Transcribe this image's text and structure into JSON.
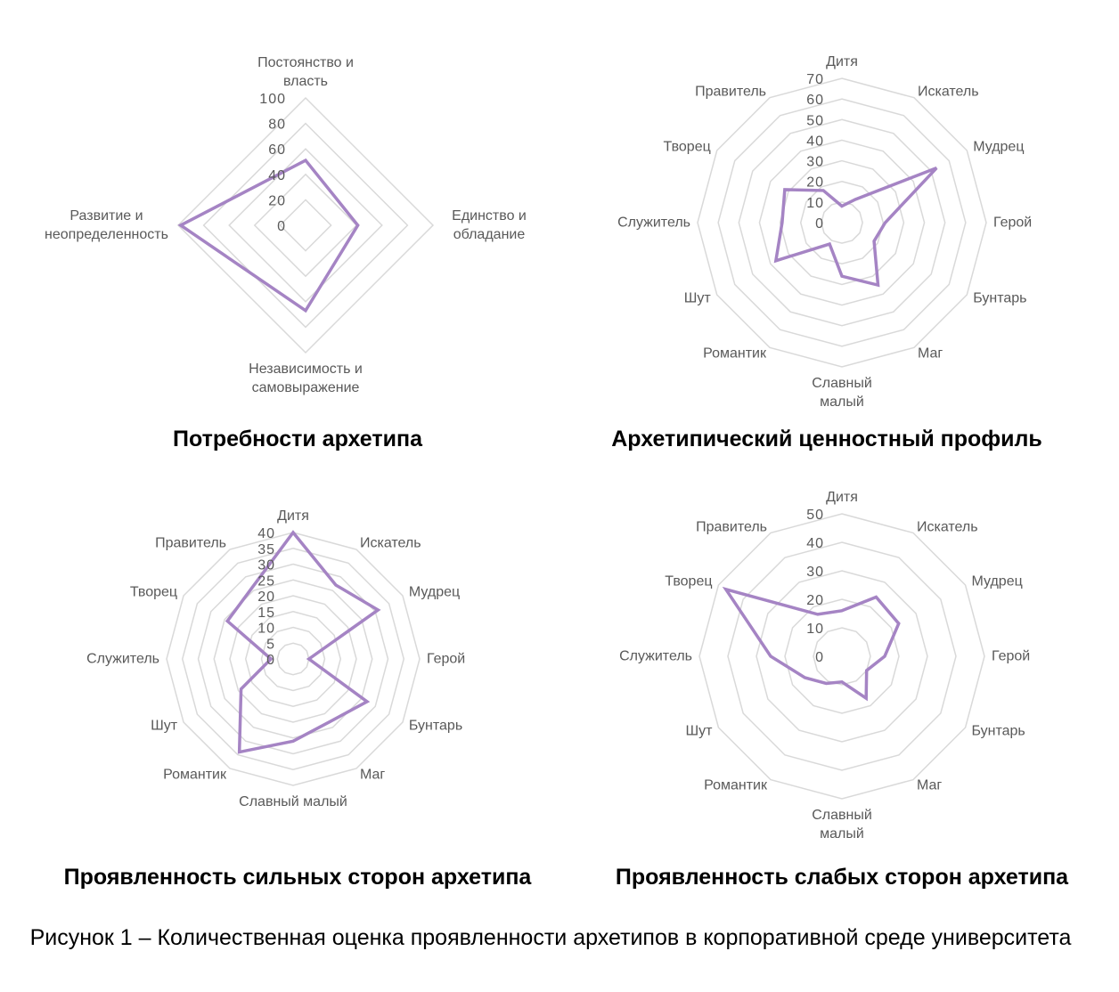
{
  "series_color": "#a584c4",
  "grid_color": "#d9d9d9",
  "chart_data": [
    {
      "type": "radar",
      "title": "Потребности архетипа",
      "categories": [
        "Постоянство и власть",
        "Единство и обладание",
        "Независимость и самовыражение",
        "Развитие и неопределенность"
      ],
      "values": [
        51,
        41,
        67,
        98
      ],
      "rlim": [
        0,
        100
      ],
      "ticks": [
        0,
        20,
        40,
        60,
        80,
        100
      ],
      "grid": true
    },
    {
      "type": "radar",
      "title": "Архетипический ценностный профиль",
      "categories": [
        "Дитя",
        "Искатель",
        "Мудрец",
        "Герой",
        "Бунтарь",
        "Маг",
        "Славный малый",
        "Романтик",
        "Шут",
        "Служитель",
        "Творец",
        "Правитель"
      ],
      "values": [
        8,
        13,
        53,
        21,
        18,
        35,
        26,
        12,
        37,
        29,
        32,
        18
      ],
      "rlim": [
        0,
        70
      ],
      "ticks": [
        0,
        10,
        20,
        30,
        40,
        50,
        60,
        70
      ],
      "grid": true
    },
    {
      "type": "radar",
      "title": "Проявленность сильных сторон архетипа",
      "categories": [
        "Дитя",
        "Искатель",
        "Мудрец",
        "Герой",
        "Бунтарь",
        "Маг",
        "Славный малый",
        "Романтик",
        "Шут",
        "Служитель",
        "Творец",
        "Правитель"
      ],
      "values": [
        40,
        27,
        31,
        5,
        27,
        23,
        26,
        34,
        19,
        7,
        24,
        26
      ],
      "rlim": [
        0,
        40
      ],
      "ticks": [
        0,
        5,
        10,
        15,
        20,
        25,
        30,
        35,
        40
      ],
      "grid": true
    },
    {
      "type": "radar",
      "title": "Проявленность слабых сторон архетипа",
      "categories": [
        "Дитя",
        "Искатель",
        "Мудрец",
        "Герой",
        "Бунтарь",
        "Маг",
        "Славный малый",
        "Романтик",
        "Шут",
        "Служитель",
        "Творец",
        "Правитель"
      ],
      "values": [
        16,
        24,
        23,
        15,
        10,
        17,
        9,
        11,
        15,
        25,
        47,
        17
      ],
      "rlim": [
        0,
        50
      ],
      "ticks": [
        0,
        10,
        20,
        30,
        40,
        50
      ],
      "grid": true
    }
  ],
  "caption": "Рисунок 1 – Количественная оценка проявленности архетипов в корпоративной среде университета"
}
